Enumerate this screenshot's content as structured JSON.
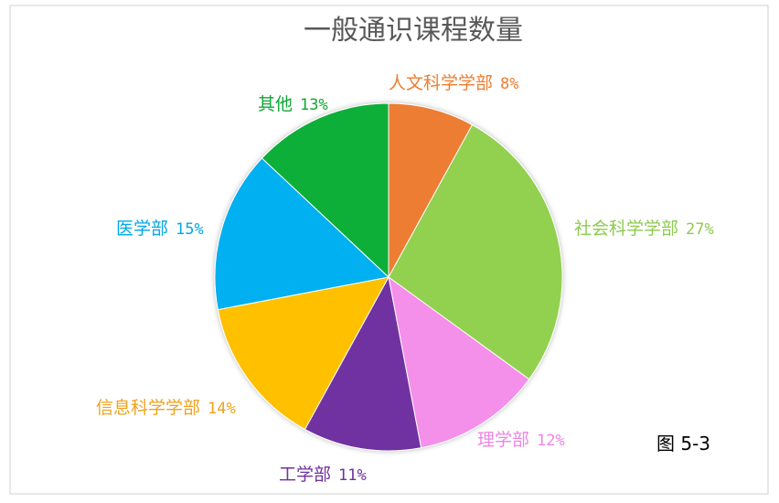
{
  "chart_data": {
    "type": "pie",
    "title": "一般通识课程数量",
    "categories": [
      "人文科学学部",
      "社会科学学部",
      "理学部",
      "工学部",
      "信息科学学部",
      "医学部",
      "其他"
    ],
    "values": [
      8,
      27,
      12,
      11,
      14,
      15,
      13
    ],
    "value_labels": [
      "8%",
      "27%",
      "12%",
      "11%",
      "14%",
      "15%",
      "13%"
    ],
    "colors": [
      "#ED7D31",
      "#92D050",
      "#F48FEA",
      "#7030A0",
      "#FFC000",
      "#00B0F0",
      "#10AF37"
    ],
    "label_colors": [
      "#ED7D31",
      "#8DCB4E",
      "#F084E6",
      "#7030A0",
      "#F0A21E",
      "#00A8E8",
      "#10A637"
    ]
  },
  "figure_caption": "图 5-3"
}
